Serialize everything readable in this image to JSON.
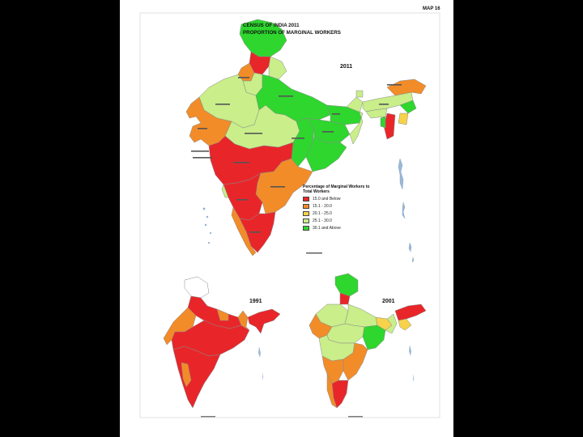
{
  "map_number": "MAP 16",
  "title_line1": "CENSUS OF INDIA 2011",
  "title_line2": "PROPORTION OF MARGINAL WORKERS",
  "years": {
    "main": "2011",
    "left_inset": "1991",
    "right_inset": "2001"
  },
  "legend": {
    "title": "Percentage of Marginal Workers to Total Workers",
    "items": [
      {
        "label": "15.0 and Below",
        "color": "#e8262a"
      },
      {
        "label": "15.1 - 20.0",
        "color": "#f28c28"
      },
      {
        "label": "20.1 - 25.0",
        "color": "#f7d24a"
      },
      {
        "label": "25.1 - 30.0",
        "color": "#c9ee8a"
      },
      {
        "label": "30.1 and Above",
        "color": "#2ed62e"
      }
    ]
  },
  "colors": {
    "frame_background": "#000000",
    "sheet": "#ffffff",
    "state_border": "#8a8a8a",
    "sea_islands": "#9bb8d8"
  }
}
